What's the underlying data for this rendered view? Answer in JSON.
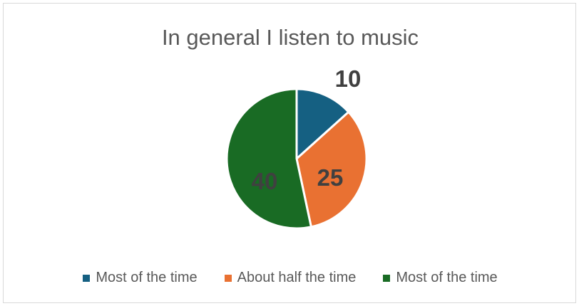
{
  "chart_data": {
    "type": "pie",
    "title": "In general I listen to music",
    "categories": [
      "Most of the time",
      "About half the time",
      "Most of the time"
    ],
    "values": [
      10,
      25,
      40
    ],
    "data_labels": [
      "10",
      "25",
      "40"
    ],
    "colors": [
      "#156082",
      "#e97132",
      "#196b24"
    ],
    "start_angle_deg": 0,
    "direction": "clockwise",
    "legend_position": "bottom",
    "grid": false
  }
}
